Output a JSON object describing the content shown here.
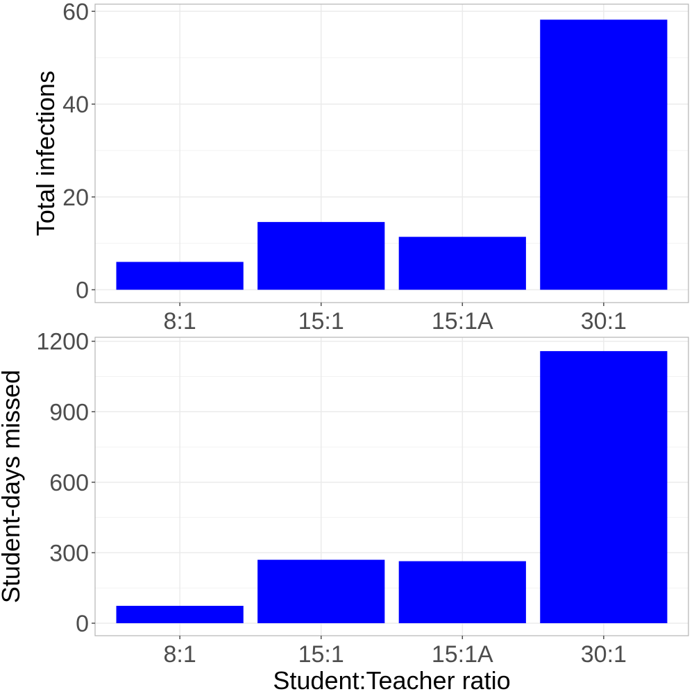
{
  "chart_data": [
    {
      "type": "bar",
      "categories": [
        "8:1",
        "15:1",
        "15:1A",
        "30:1"
      ],
      "values": [
        6,
        14.6,
        11.4,
        58.2
      ],
      "xlabel": "",
      "ylabel": "Total infections",
      "ylim": [
        0,
        60
      ],
      "yticks": [
        0,
        20,
        40,
        60
      ],
      "grid": true,
      "bar_color": "#0000ff"
    },
    {
      "type": "bar",
      "categories": [
        "8:1",
        "15:1",
        "15:1A",
        "30:1"
      ],
      "values": [
        74,
        270,
        264,
        1158
      ],
      "xlabel": "Student:Teacher ratio",
      "ylabel": "Student-days missed",
      "ylim": [
        0,
        1200
      ],
      "yticks": [
        0,
        300,
        600,
        900,
        1200
      ],
      "grid": true,
      "bar_color": "#0000ff"
    }
  ]
}
